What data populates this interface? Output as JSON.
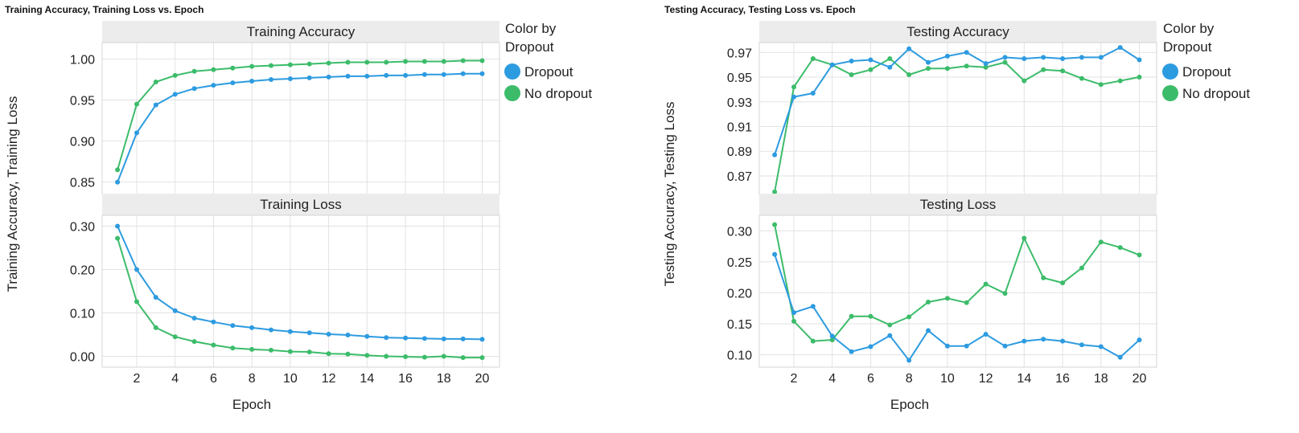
{
  "colors": {
    "dropout": "#2d9be0",
    "no_dropout": "#3cbc6a",
    "header_bg": "#ececec",
    "grid": "#e2e2e2",
    "border": "#d4d4d4"
  },
  "chart_data": [
    {
      "type": "line",
      "title": "Training Accuracy, Training Loss vs. Epoch",
      "ylabel": "Training Accuracy, Training Loss",
      "xlabel": "Epoch",
      "x": [
        1,
        2,
        3,
        4,
        5,
        6,
        7,
        8,
        9,
        10,
        11,
        12,
        13,
        14,
        15,
        16,
        17,
        18,
        19,
        20
      ],
      "x_ticks": [
        2,
        4,
        6,
        8,
        10,
        12,
        14,
        16,
        18,
        20
      ],
      "legend": {
        "title": "Color by Dropout",
        "position": "right",
        "entries": [
          "Dropout",
          "No dropout"
        ]
      },
      "panes": [
        {
          "title": "Training Accuracy",
          "ylim": [
            0.835,
            1.02
          ],
          "y_ticks": [
            0.85,
            0.9,
            0.95,
            1.0
          ],
          "y_tick_labels": [
            "0.85",
            "0.90",
            "0.95",
            "1.00"
          ],
          "series": [
            {
              "name": "Dropout",
              "values": [
                0.85,
                0.91,
                0.944,
                0.957,
                0.964,
                0.968,
                0.971,
                0.973,
                0.975,
                0.976,
                0.977,
                0.978,
                0.979,
                0.979,
                0.98,
                0.98,
                0.981,
                0.981,
                0.982,
                0.982
              ]
            },
            {
              "name": "No dropout",
              "values": [
                0.865,
                0.945,
                0.972,
                0.98,
                0.985,
                0.987,
                0.989,
                0.991,
                0.992,
                0.993,
                0.994,
                0.995,
                0.996,
                0.996,
                0.996,
                0.997,
                0.997,
                0.997,
                0.998,
                0.998
              ]
            }
          ]
        },
        {
          "title": "Training Loss",
          "ylim": [
            -0.025,
            0.325
          ],
          "y_ticks": [
            0.0,
            0.1,
            0.2,
            0.3
          ],
          "y_tick_labels": [
            "0.00",
            "0.10",
            "0.20",
            "0.30"
          ],
          "series": [
            {
              "name": "Dropout",
              "values": [
                0.3,
                0.2,
                0.136,
                0.105,
                0.088,
                0.079,
                0.071,
                0.066,
                0.061,
                0.057,
                0.054,
                0.051,
                0.049,
                0.046,
                0.043,
                0.042,
                0.041,
                0.04,
                0.04,
                0.039
              ]
            },
            {
              "name": "No dropout",
              "values": [
                0.272,
                0.126,
                0.066,
                0.045,
                0.034,
                0.026,
                0.019,
                0.016,
                0.014,
                0.011,
                0.01,
                0.006,
                0.005,
                0.002,
                0.0,
                -0.001,
                -0.002,
                0.0,
                -0.003,
                -0.003
              ]
            }
          ]
        }
      ]
    },
    {
      "type": "line",
      "title": "Testing Accuracy, Testing Loss vs. Epoch",
      "ylabel": "Testing Accuracy, Testing Loss",
      "xlabel": "Epoch",
      "x": [
        1,
        2,
        3,
        4,
        5,
        6,
        7,
        8,
        9,
        10,
        11,
        12,
        13,
        14,
        15,
        16,
        17,
        18,
        19,
        20
      ],
      "x_ticks": [
        2,
        4,
        6,
        8,
        10,
        12,
        14,
        16,
        18,
        20
      ],
      "legend": {
        "title": "Color by Dropout",
        "position": "right",
        "entries": [
          "Dropout",
          "No dropout"
        ]
      },
      "panes": [
        {
          "title": "Testing Accuracy",
          "ylim": [
            0.855,
            0.978
          ],
          "y_ticks": [
            0.87,
            0.89,
            0.91,
            0.93,
            0.95,
            0.97
          ],
          "y_tick_labels": [
            "0.87",
            "0.89",
            "0.91",
            "0.93",
            "0.95",
            "0.97"
          ],
          "series": [
            {
              "name": "Dropout",
              "values": [
                0.887,
                0.934,
                0.937,
                0.96,
                0.963,
                0.964,
                0.958,
                0.973,
                0.962,
                0.967,
                0.97,
                0.961,
                0.966,
                0.965,
                0.966,
                0.965,
                0.966,
                0.966,
                0.974,
                0.964
              ]
            },
            {
              "name": "No dropout",
              "values": [
                0.857,
                0.942,
                0.965,
                0.96,
                0.952,
                0.956,
                0.965,
                0.952,
                0.957,
                0.957,
                0.959,
                0.958,
                0.962,
                0.947,
                0.956,
                0.955,
                0.949,
                0.944,
                0.947,
                0.95
              ]
            }
          ]
        },
        {
          "title": "Testing Loss",
          "ylim": [
            0.08,
            0.325
          ],
          "y_ticks": [
            0.1,
            0.15,
            0.2,
            0.25,
            0.3
          ],
          "y_tick_labels": [
            "0.10",
            "0.15",
            "0.20",
            "0.25",
            "0.30"
          ],
          "series": [
            {
              "name": "Dropout",
              "values": [
                0.262,
                0.168,
                0.178,
                0.13,
                0.105,
                0.113,
                0.131,
                0.091,
                0.139,
                0.114,
                0.114,
                0.133,
                0.114,
                0.122,
                0.125,
                0.122,
                0.116,
                0.113,
                0.096,
                0.124
              ]
            },
            {
              "name": "No dropout",
              "values": [
                0.31,
                0.154,
                0.122,
                0.124,
                0.162,
                0.162,
                0.148,
                0.161,
                0.185,
                0.191,
                0.184,
                0.214,
                0.199,
                0.288,
                0.224,
                0.216,
                0.24,
                0.282,
                0.273,
                0.261
              ]
            }
          ]
        }
      ]
    }
  ]
}
